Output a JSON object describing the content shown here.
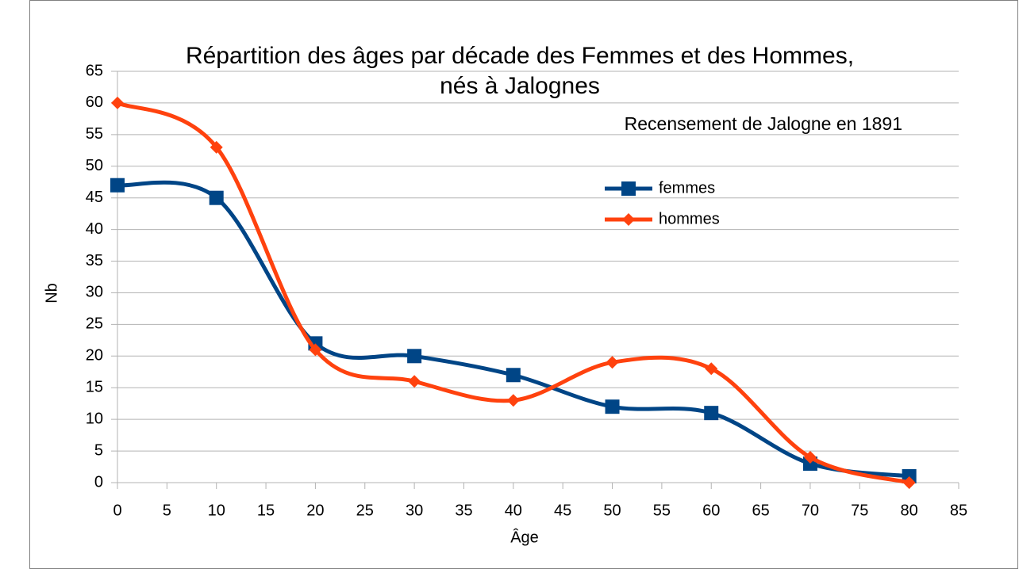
{
  "chart_data": {
    "type": "line",
    "title": [
      "Répartition des âges par décade des Femmes et des Hommes,",
      "nés à Jalognes"
    ],
    "annotation": "Recensement de Jalogne en 1891",
    "x_label": "Âge",
    "y_label": "Nb",
    "x": [
      0,
      10,
      20,
      30,
      40,
      50,
      60,
      70,
      80
    ],
    "series": [
      {
        "name": "femmes",
        "color": "#004586",
        "marker": "square",
        "values": [
          47,
          45,
          22,
          20,
          17,
          12,
          11,
          3,
          1
        ]
      },
      {
        "name": "hommes",
        "color": "#ff420e",
        "marker": "diamond",
        "values": [
          60,
          53,
          21,
          16,
          13,
          19,
          18,
          4,
          0
        ]
      }
    ],
    "smooth": true,
    "xlim": [
      0,
      85
    ],
    "xticks": [
      0,
      5,
      10,
      15,
      20,
      25,
      30,
      35,
      40,
      45,
      50,
      55,
      60,
      65,
      70,
      75,
      80,
      85
    ],
    "ylim": [
      0,
      65
    ],
    "yticks": [
      0,
      5,
      10,
      15,
      20,
      25,
      30,
      35,
      40,
      45,
      50,
      55,
      60,
      65
    ],
    "grid": true
  }
}
